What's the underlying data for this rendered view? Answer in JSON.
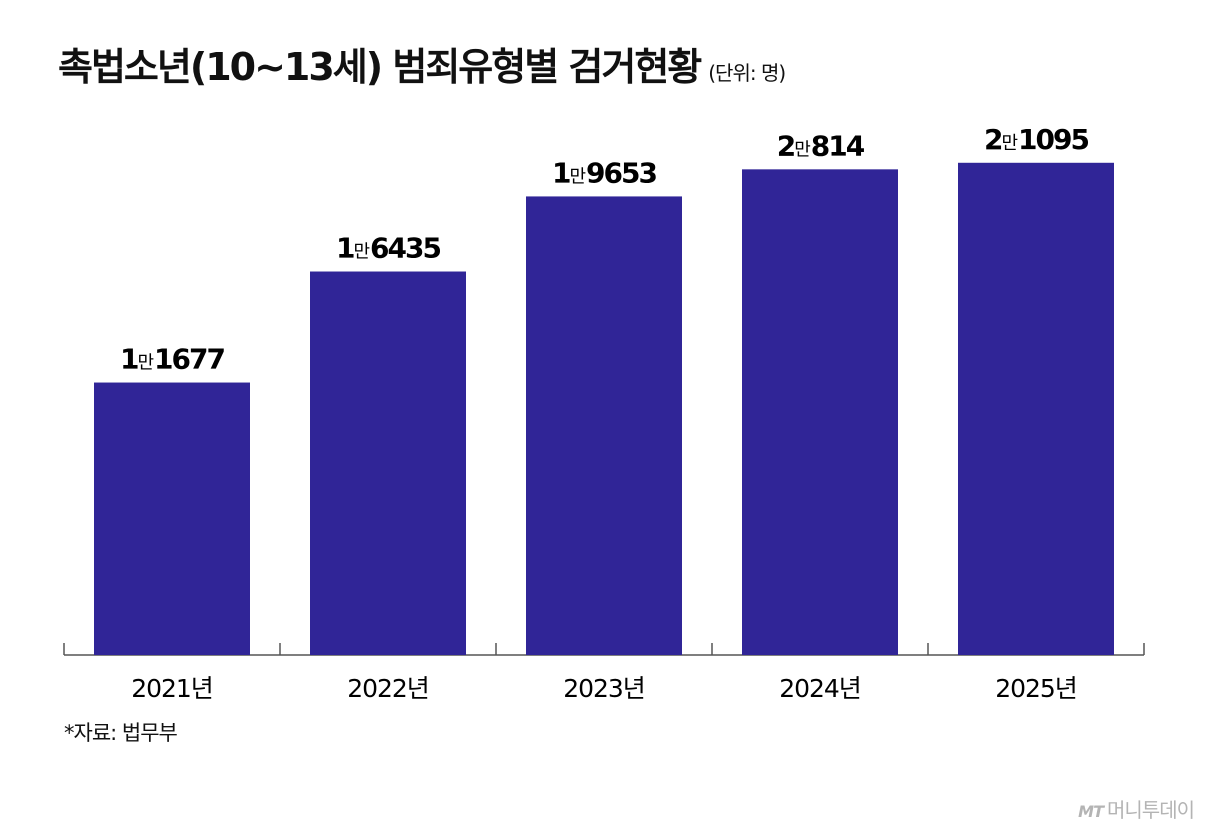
{
  "chart_data": {
    "type": "bar",
    "title": "촉법소년(10~13세) 범죄유형별 검거현황",
    "unit_note": "(단위: 명)",
    "categories": [
      "2021년",
      "2022년",
      "2023년",
      "2024년",
      "2025년"
    ],
    "values": [
      11677,
      16435,
      19653,
      20814,
      21095
    ],
    "value_labels": [
      {
        "major": "1",
        "unit": "만",
        "minor": "1677"
      },
      {
        "major": "1",
        "unit": "만",
        "minor": "6435"
      },
      {
        "major": "1",
        "unit": "만",
        "minor": "9653"
      },
      {
        "major": "2",
        "unit": "만",
        "minor": "814"
      },
      {
        "major": "2",
        "unit": "만",
        "minor": "1095"
      }
    ],
    "ylim": [
      0,
      22500
    ],
    "grid": false,
    "legend": "none",
    "bar_color": "#302597"
  },
  "source": "*자료: 법무부",
  "watermark": {
    "mark": "MT",
    "text": "머니투데이"
  }
}
